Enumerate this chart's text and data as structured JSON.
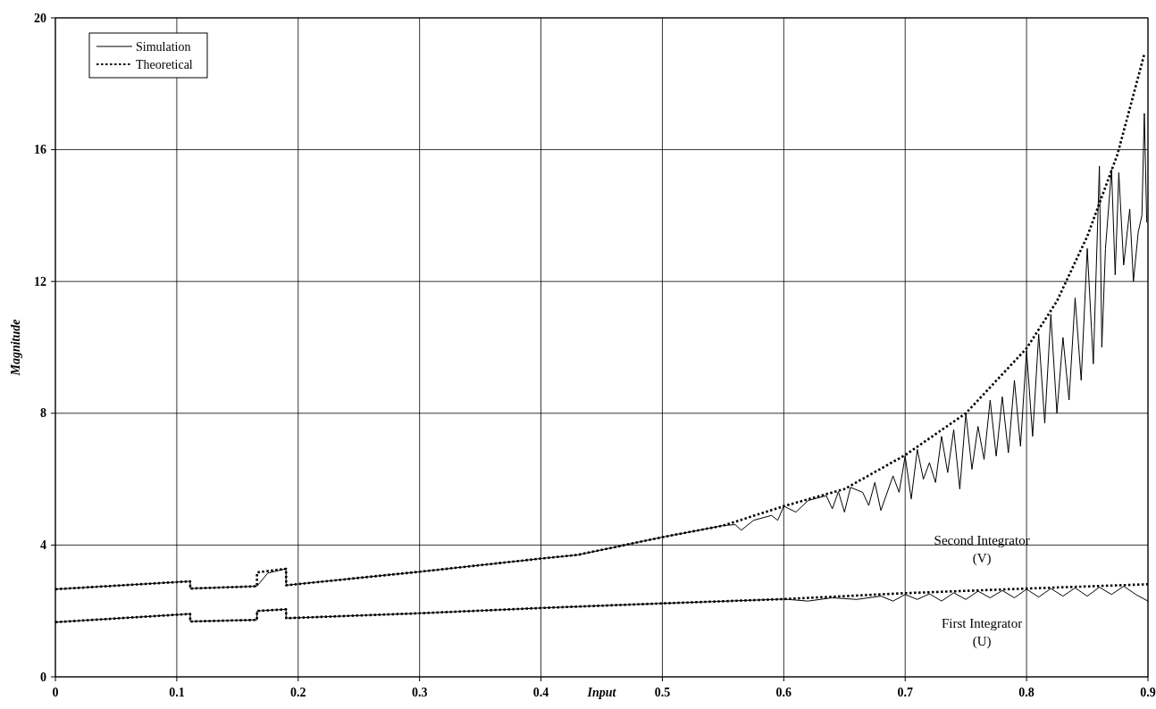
{
  "chart_data": {
    "type": "line",
    "xlabel": "Input",
    "ylabel": "Magnitude",
    "xlim": [
      0,
      0.9
    ],
    "ylim": [
      0,
      20
    ],
    "xticks": [
      0,
      0.1,
      0.2,
      0.3,
      0.4,
      0.5,
      0.6,
      0.7,
      0.8,
      0.9
    ],
    "yticks": [
      0,
      4,
      8,
      12,
      16,
      20
    ],
    "grid": true,
    "legend": "top left",
    "annotations": [
      "Second Integrator\n(V)",
      "First Integrator\n(U)"
    ],
    "series": [
      {
        "name": "Simulation",
        "color": "#000000",
        "line_style": "solid",
        "x": [
          0,
          0.111,
          0.1111,
          0.166,
          0.175,
          0.19,
          0.1901,
          0.3,
          0.4,
          0.43,
          0.5,
          0.55,
          0.56,
          0.565,
          0.575,
          0.59,
          0.595,
          0.6,
          0.61,
          0.62,
          0.635,
          0.64,
          0.645,
          0.65,
          0.655,
          0.665,
          0.67,
          0.675,
          0.68,
          0.69,
          0.695,
          0.7,
          0.705,
          0.71,
          0.715,
          0.72,
          0.725,
          0.73,
          0.735,
          0.74,
          0.745,
          0.75,
          0.755,
          0.76,
          0.765,
          0.77,
          0.775,
          0.78,
          0.785,
          0.79,
          0.795,
          0.8,
          0.805,
          0.81,
          0.815,
          0.82,
          0.825,
          0.83,
          0.835,
          0.84,
          0.845,
          0.85,
          0.855,
          0.86,
          0.862,
          0.865,
          0.87,
          0.873,
          0.876,
          0.88,
          0.885,
          0.888,
          0.892,
          0.895,
          0.897,
          0.899
        ],
        "values": [
          2.66,
          2.9,
          2.68,
          2.75,
          3.15,
          3.28,
          2.78,
          3.19,
          3.59,
          3.7,
          4.24,
          4.59,
          4.62,
          4.45,
          4.75,
          4.9,
          4.75,
          5.18,
          5.0,
          5.35,
          5.5,
          5.1,
          5.62,
          5.0,
          5.75,
          5.6,
          5.2,
          5.9,
          5.05,
          6.1,
          5.6,
          6.7,
          5.4,
          6.9,
          6.0,
          6.5,
          5.9,
          7.3,
          6.2,
          7.5,
          5.7,
          8.0,
          6.3,
          7.6,
          6.6,
          8.4,
          6.7,
          8.5,
          6.8,
          9.0,
          7.0,
          9.9,
          7.3,
          10.4,
          7.7,
          11.0,
          8.0,
          10.3,
          8.4,
          11.5,
          9.0,
          13.0,
          9.5,
          15.5,
          10.0,
          13.0,
          15.4,
          12.2,
          15.3,
          12.5,
          14.2,
          12.0,
          13.5,
          14.0,
          17.1,
          13.8
        ]
      },
      {
        "name": "Theoretical",
        "color": "#000000",
        "line_style": "dotted",
        "x": [
          0,
          0.111,
          0.1111,
          0.166,
          0.1661,
          0.19,
          0.1901,
          0.3,
          0.4,
          0.43,
          0.5,
          0.55,
          0.6,
          0.65,
          0.7,
          0.75,
          0.8,
          0.825,
          0.85,
          0.875,
          0.897
        ],
        "values": [
          2.66,
          2.9,
          2.68,
          2.75,
          3.17,
          3.28,
          2.78,
          3.19,
          3.59,
          3.7,
          4.24,
          4.59,
          5.18,
          5.7,
          6.73,
          8.0,
          9.97,
          11.4,
          13.37,
          15.87,
          18.9
        ]
      },
      {
        "color": "#000000",
        "line_style": "solid",
        "x": [
          0,
          0.111,
          0.1111,
          0.166,
          0.1661,
          0.19,
          0.1901,
          0.3,
          0.4,
          0.5,
          0.6,
          0.62,
          0.64,
          0.66,
          0.68,
          0.69,
          0.7,
          0.71,
          0.72,
          0.73,
          0.74,
          0.75,
          0.76,
          0.77,
          0.78,
          0.79,
          0.8,
          0.81,
          0.82,
          0.83,
          0.84,
          0.85,
          0.86,
          0.87,
          0.88,
          0.89,
          0.9
        ],
        "values": [
          1.66,
          1.91,
          1.68,
          1.73,
          2.0,
          2.05,
          1.78,
          1.93,
          2.09,
          2.23,
          2.36,
          2.3,
          2.4,
          2.35,
          2.45,
          2.3,
          2.5,
          2.35,
          2.52,
          2.3,
          2.55,
          2.35,
          2.6,
          2.4,
          2.62,
          2.4,
          2.66,
          2.42,
          2.68,
          2.45,
          2.7,
          2.45,
          2.72,
          2.5,
          2.75,
          2.5,
          2.3
        ]
      },
      {
        "color": "#000000",
        "line_style": "dotted",
        "x": [
          0,
          0.111,
          0.1111,
          0.166,
          0.1661,
          0.19,
          0.1901,
          0.3,
          0.4,
          0.5,
          0.6,
          0.7,
          0.8,
          0.9
        ],
        "values": [
          1.66,
          1.91,
          1.68,
          1.73,
          2.0,
          2.05,
          1.78,
          1.93,
          2.09,
          2.23,
          2.36,
          2.54,
          2.68,
          2.81
        ]
      }
    ]
  }
}
